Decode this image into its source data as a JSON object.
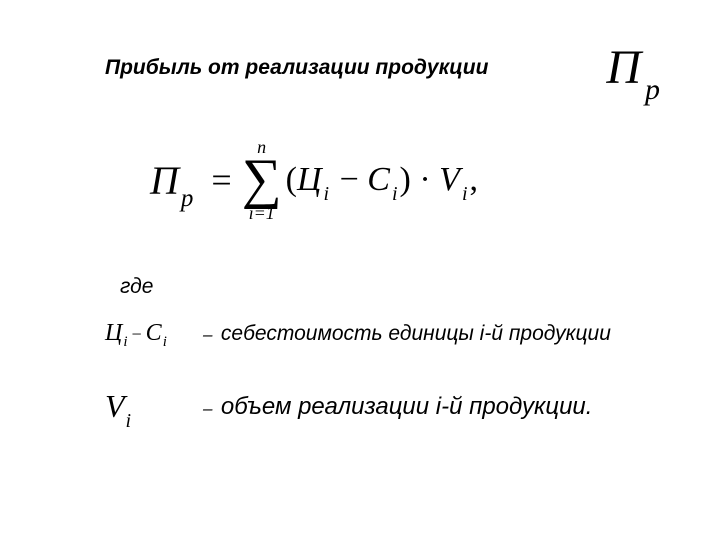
{
  "title": "Прибыль от реализации продукции",
  "title_symbol": {
    "base": "П",
    "sub": "р"
  },
  "formula": {
    "lhs_base": "П",
    "lhs_sub": "р",
    "eq": "=",
    "sum_top": "n",
    "sum_sigma": "∑",
    "sum_bot": "i=1",
    "open": "(",
    "t1_base": "Ц",
    "t1_sub": "i",
    "minus": "−",
    "t2_base": "С",
    "t2_sub": "i",
    "close": ")",
    "dot": "·",
    "v_base": "V",
    "v_sub": "i",
    "comma": ","
  },
  "where": "где",
  "def1": {
    "sym_a": "Ц",
    "sym_a_sub": "i",
    "sym_minus": "−",
    "sym_b": "С",
    "sym_b_sub": "i",
    "dash": "–",
    "text": "себестоимость единицы i-й продукции"
  },
  "def2": {
    "sym": "V",
    "sym_sub": "i",
    "dash": "–",
    "text": "объем реализации i-й продукции."
  },
  "colors": {
    "background": "#ffffff",
    "text": "#000000"
  },
  "fontsizes": {
    "title": 21,
    "title_symbol": 48,
    "formula_main": 40,
    "where": 21,
    "def1_text": 21,
    "def2_text": 24
  }
}
